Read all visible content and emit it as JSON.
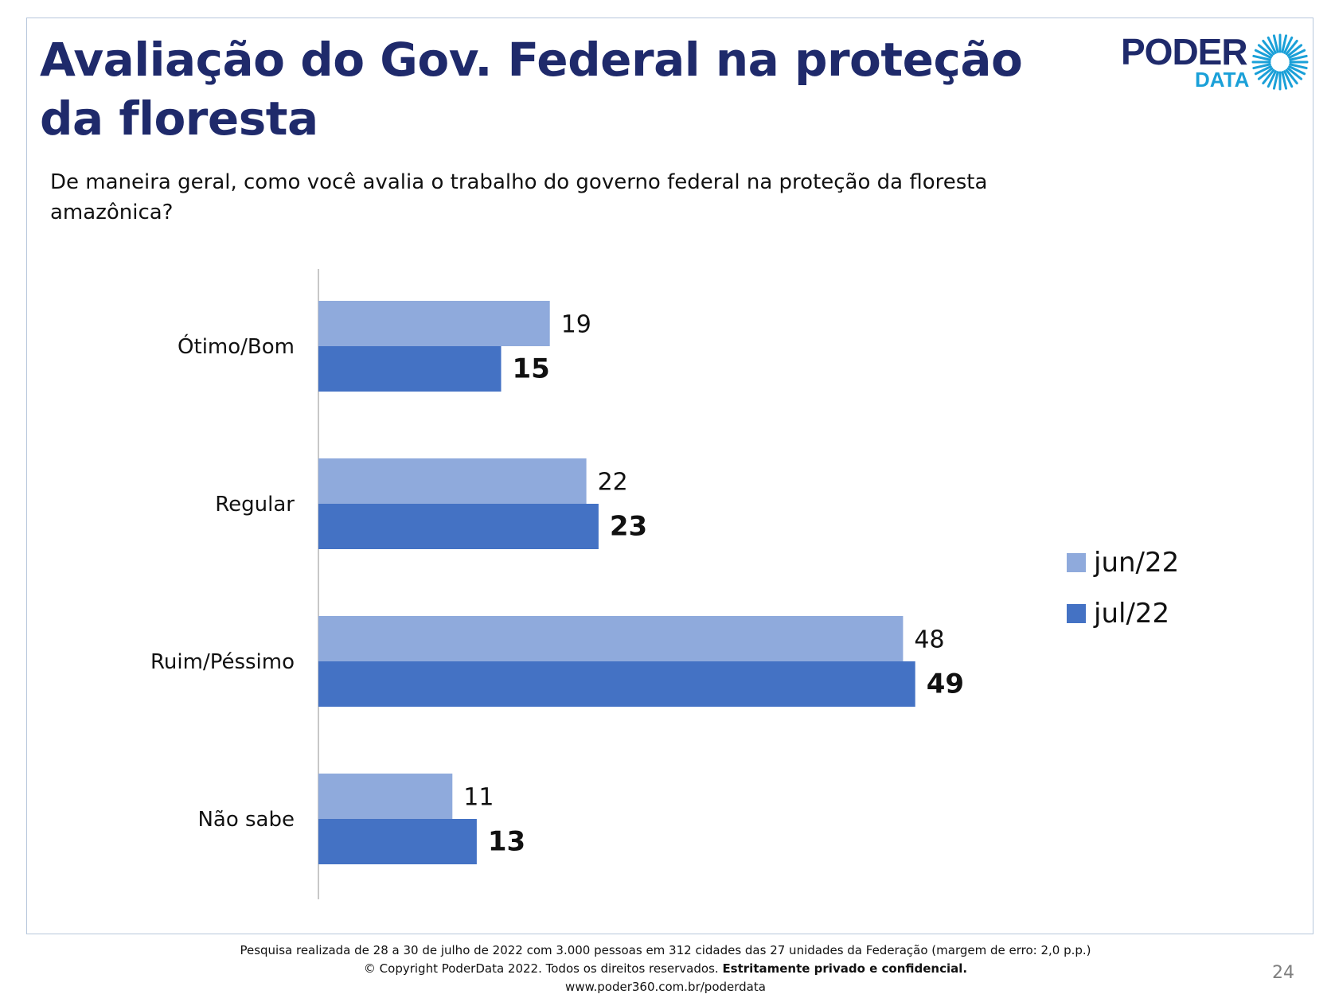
{
  "title": "Avaliação do Gov. Federal na proteção da floresta",
  "subtitle": "De maneira geral, como você avalia o trabalho do governo federal na proteção da floresta amazônica?",
  "logo": {
    "word1": "PODER",
    "word2": "DATA",
    "colors": {
      "dark": "#1f2a6b",
      "accent": "#1aa0d8"
    }
  },
  "chart_data": {
    "type": "bar",
    "orientation": "horizontal",
    "categories": [
      "Ótimo/Bom",
      "Regular",
      "Ruim/Péssimo",
      "Não sabe"
    ],
    "series": [
      {
        "name": "jun/22",
        "values": [
          19,
          22,
          48,
          11
        ],
        "color": "#8faadc"
      },
      {
        "name": "jul/22",
        "values": [
          15,
          23,
          49,
          13
        ],
        "color": "#4472c4"
      }
    ],
    "legend_position": "right",
    "grid": false,
    "xlim": [
      0,
      55
    ]
  },
  "footer": {
    "line1": "Pesquisa realizada de 28 a 30 de julho de 2022 com 3.000 pessoas em 312 cidades das 27 unidades da Federação (margem de erro: 2,0 p.p.)",
    "line2_normal": "© Copyright PoderData 2022. Todos os direitos reservados. ",
    "line2_bold": "Estritamente privado e confidencial.",
    "line3": "www.poder360.com.br/poderdata"
  },
  "page_number": "24"
}
